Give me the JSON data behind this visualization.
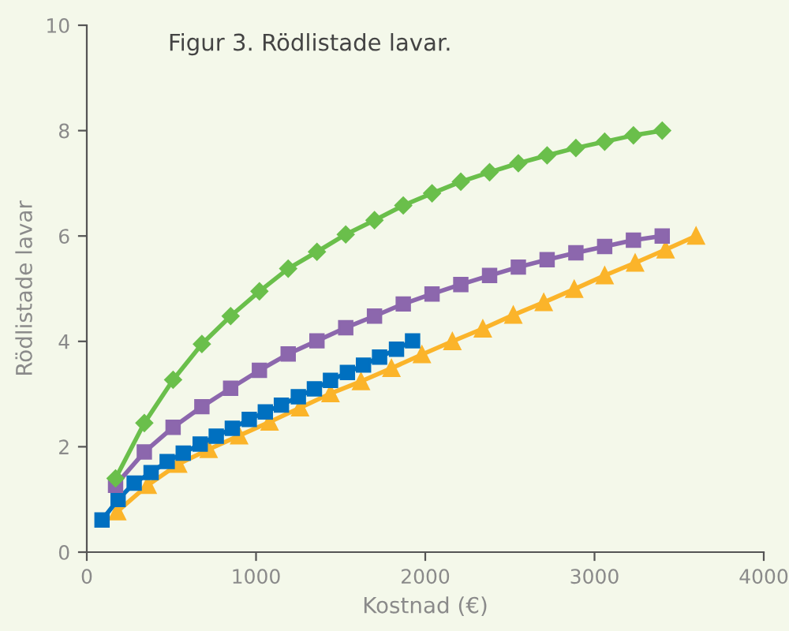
{
  "chart_data": {
    "type": "line",
    "title": "Figur 3. Rödlistade lavar.",
    "xlabel": "Kostnad (€)",
    "ylabel": "Rödlistade lavar",
    "xlim": [
      0,
      4000
    ],
    "xticks": [
      0,
      1000,
      2000,
      3000,
      4000
    ],
    "ylim": [
      0,
      10
    ],
    "yticks": [
      0,
      2,
      4,
      6,
      8,
      10
    ],
    "grid": false,
    "legend": false,
    "series": [
      {
        "color": "#6abf4b",
        "marker": "diamond",
        "x": [
          170,
          340,
          510,
          680,
          850,
          1020,
          1190,
          1360,
          1530,
          1700,
          1870,
          2040,
          2210,
          2380,
          2550,
          2720,
          2890,
          3060,
          3230,
          3400
        ],
        "values": [
          1.4,
          2.45,
          3.27,
          3.95,
          4.48,
          4.95,
          5.38,
          5.7,
          6.03,
          6.3,
          6.58,
          6.81,
          7.03,
          7.21,
          7.38,
          7.53,
          7.67,
          7.79,
          7.91,
          8.0
        ]
      },
      {
        "color": "#8c67ad",
        "marker": "square",
        "x": [
          170,
          340,
          510,
          680,
          850,
          1020,
          1190,
          1360,
          1530,
          1700,
          1870,
          2040,
          2210,
          2380,
          2550,
          2720,
          2890,
          3060,
          3230,
          3400
        ],
        "values": [
          1.27,
          1.9,
          2.37,
          2.76,
          3.11,
          3.45,
          3.76,
          4.01,
          4.26,
          4.48,
          4.71,
          4.9,
          5.08,
          5.25,
          5.41,
          5.55,
          5.68,
          5.8,
          5.92,
          6.0
        ]
      },
      {
        "color": "#0070c0",
        "marker": "square",
        "x": [
          90,
          185,
          280,
          380,
          475,
          570,
          670,
          765,
          860,
          960,
          1055,
          1150,
          1250,
          1345,
          1440,
          1540,
          1635,
          1730,
          1830,
          1925
        ],
        "values": [
          0.61,
          1.0,
          1.31,
          1.51,
          1.72,
          1.88,
          2.05,
          2.2,
          2.35,
          2.52,
          2.66,
          2.79,
          2.95,
          3.1,
          3.26,
          3.41,
          3.55,
          3.7,
          3.85,
          4.01
        ]
      },
      {
        "color": "#fbb42a",
        "marker": "triangle",
        "x": [
          180,
          360,
          540,
          720,
          900,
          1080,
          1260,
          1440,
          1620,
          1800,
          1980,
          2160,
          2340,
          2520,
          2700,
          2880,
          3060,
          3240,
          3420,
          3600
        ],
        "values": [
          0.77,
          1.27,
          1.67,
          1.95,
          2.21,
          2.47,
          2.74,
          3.01,
          3.24,
          3.49,
          3.75,
          4.0,
          4.24,
          4.5,
          4.74,
          4.99,
          5.25,
          5.49,
          5.74,
          6.0
        ]
      }
    ]
  }
}
